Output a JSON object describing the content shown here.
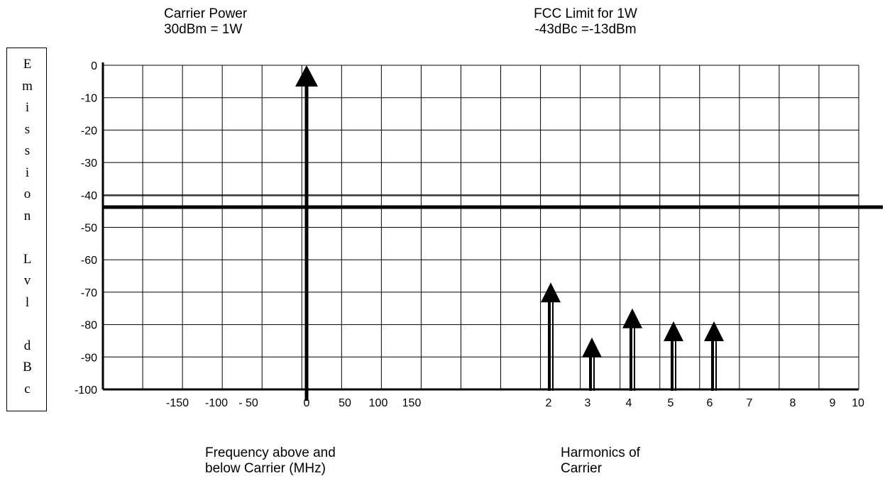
{
  "chart_data": {
    "type": "bar",
    "annotations": {
      "carrier_line1": "Carrier Power",
      "carrier_line2": "30dBm = 1W",
      "fcc_line1": "FCC Limit for 1W",
      "fcc_line2": "-43dBc =-13dBm"
    },
    "ylabel_chars": [
      "E",
      "m",
      "i",
      "s",
      "s",
      "i",
      "o",
      "n",
      "",
      "L",
      "v",
      "l",
      "",
      "d",
      "B",
      "c"
    ],
    "yticks": [
      "0",
      "-10",
      "-20",
      "-30",
      "-40",
      "-50",
      "-60",
      "-70",
      "-80",
      "-90",
      "-100"
    ],
    "ylim": [
      -100,
      0
    ],
    "freq_ticks": [
      "-150",
      "-100",
      "- 50",
      "0",
      "50",
      "100",
      "150"
    ],
    "harmonic_ticks": [
      "2",
      "3",
      "4",
      "5",
      "6",
      "7",
      "8",
      "9",
      "10"
    ],
    "xlabel_freq_line1": "Frequency above and",
    "xlabel_freq_line2": "below Carrier (MHz)",
    "xlabel_harm_line1": "Harmonics of",
    "xlabel_harm_line2": "Carrier",
    "fcc_limit_dbc": -43,
    "series": [
      {
        "x": "0 MHz",
        "group": "carrier",
        "value": 0
      },
      {
        "x": "2",
        "group": "harmonic",
        "value": -67
      },
      {
        "x": "3",
        "group": "harmonic",
        "value": -84
      },
      {
        "x": "4",
        "group": "harmonic",
        "value": -75
      },
      {
        "x": "5",
        "group": "harmonic",
        "value": -79
      },
      {
        "x": "6",
        "group": "harmonic",
        "value": -79
      }
    ],
    "grid": true
  }
}
